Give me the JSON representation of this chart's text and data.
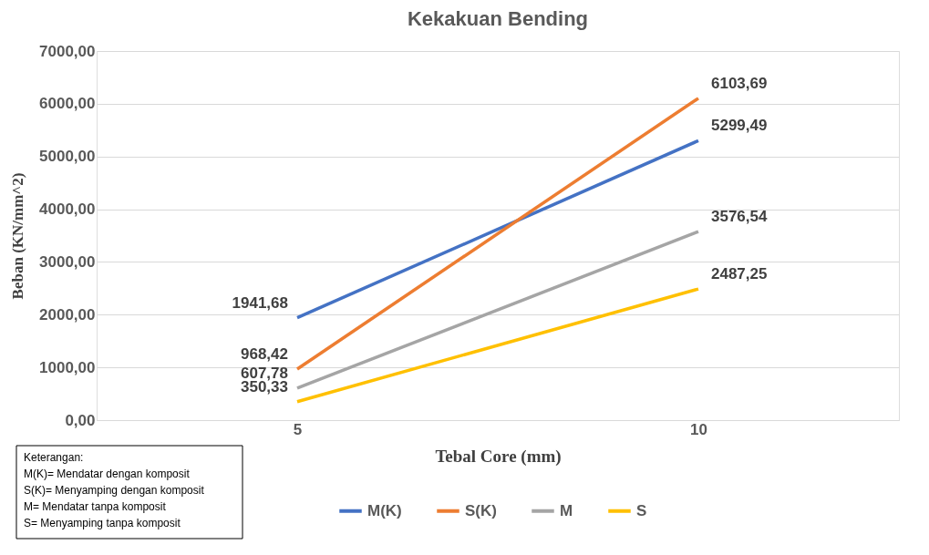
{
  "chart_data": {
    "type": "line",
    "title": "Kekakuan Bending",
    "xlabel": "Tebal Core (mm)",
    "ylabel": "Beban (KN/mm^2)",
    "categories": [
      "5",
      "10"
    ],
    "series": [
      {
        "name": "M(K)",
        "color": "#4472c4",
        "values": [
          1941.68,
          5299.49
        ],
        "value_labels": [
          "1941,68",
          "5299,49"
        ]
      },
      {
        "name": "S(K)",
        "color": "#ed7d31",
        "values": [
          968.42,
          6103.69
        ],
        "value_labels": [
          "968,42",
          "6103,69"
        ]
      },
      {
        "name": "M",
        "color": "#a5a5a5",
        "values": [
          607.78,
          3576.54
        ],
        "value_labels": [
          "607,78",
          "3576,54"
        ]
      },
      {
        "name": "S",
        "color": "#ffc000",
        "values": [
          350.33,
          2487.25
        ],
        "value_labels": [
          "350,33",
          "2487,25"
        ]
      }
    ],
    "ylim": [
      0,
      7000
    ],
    "yticks": [
      {
        "value": 0,
        "label": "0,00"
      },
      {
        "value": 1000,
        "label": "1000,00"
      },
      {
        "value": 2000,
        "label": "2000,00"
      },
      {
        "value": 3000,
        "label": "3000,00"
      },
      {
        "value": 4000,
        "label": "4000,00"
      },
      {
        "value": 5000,
        "label": "5000,00"
      },
      {
        "value": 6000,
        "label": "6000,00"
      },
      {
        "value": 7000,
        "label": "7000,00"
      }
    ],
    "grid": "y",
    "legend": "bottom",
    "marker": "none",
    "line_style": "solid",
    "annotations": [
      "Keterangan:",
      "M(K)= Mendatar dengan komposit",
      "S(K)= Menyamping dengan komposit",
      "M= Mendatar tanpa komposit",
      "S= Menyamping tanpa komposit"
    ]
  }
}
